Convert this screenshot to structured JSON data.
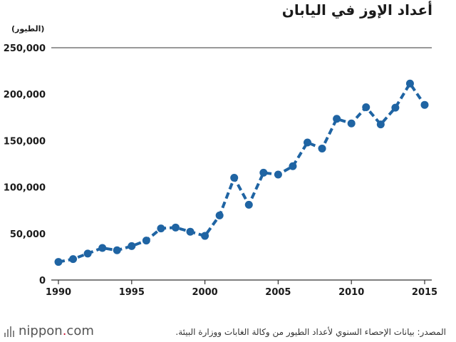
{
  "header": {
    "title": "أعداد الإوز في اليابان",
    "unit_label": "(الطيور)"
  },
  "footer": {
    "logo_text": "nippon",
    "logo_dot": ".",
    "logo_suffix": "com",
    "source": "المصدر: بيانات الإحصاء السنوي لأعداد الطيور من وكالة الغابات ووزارة البيئة."
  },
  "colors": {
    "series": "#1f64a3",
    "axis": "#333333",
    "logo_accent": "#c8102e"
  },
  "chart_data": {
    "type": "line",
    "title": "أعداد الإوز في اليابان",
    "ylabel": "(الطيور)",
    "xlabel": "",
    "xlim": [
      1990,
      2015
    ],
    "ylim": [
      0,
      250000
    ],
    "x_ticks": [
      1990,
      1995,
      2000,
      2005,
      2010,
      2015
    ],
    "y_ticks": [
      0,
      50000,
      100000,
      150000,
      200000,
      250000
    ],
    "y_tick_labels": [
      "0",
      "50,000",
      "100,000",
      "150,000",
      "200,000",
      "250,000"
    ],
    "grid": false,
    "line_style": "dashed-with-markers",
    "series": [
      {
        "x": [
          1990,
          1991,
          1992,
          1993,
          1994,
          1995,
          1996,
          1997,
          1998,
          1999,
          2000,
          2001,
          2002,
          2003,
          2004,
          2005,
          2006,
          2007,
          2008,
          2009,
          2010,
          2011,
          2012,
          2013,
          2014,
          2015
        ],
        "y": [
          19500,
          22500,
          28500,
          34500,
          32000,
          36500,
          42500,
          55500,
          56500,
          52000,
          47500,
          69500,
          110000,
          81000,
          115500,
          113500,
          122500,
          148000,
          141500,
          173500,
          168500,
          186000,
          167500,
          185500,
          211500,
          188500
        ]
      }
    ]
  }
}
